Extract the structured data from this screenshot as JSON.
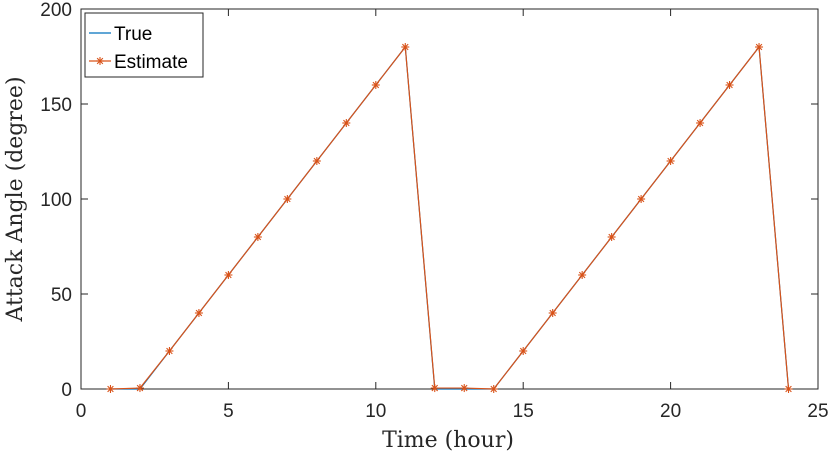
{
  "chart_data": {
    "type": "line",
    "xlabel": "Time (hour)",
    "ylabel": "Attack Angle (degree)",
    "xlim": [
      0,
      25
    ],
    "ylim": [
      0,
      200
    ],
    "xticks": [
      0,
      5,
      10,
      15,
      20,
      25
    ],
    "yticks": [
      0,
      50,
      100,
      150,
      200
    ],
    "grid": false,
    "legend_position": "top-left",
    "x": [
      1,
      2,
      3,
      4,
      5,
      6,
      7,
      8,
      9,
      10,
      11,
      12,
      13,
      14,
      15,
      16,
      17,
      18,
      19,
      20,
      21,
      22,
      23,
      24
    ],
    "series": [
      {
        "name": "True",
        "color": "#0072BD",
        "marker": "none",
        "values": [
          0,
          0,
          20,
          40,
          60,
          80,
          100,
          120,
          140,
          160,
          180,
          0,
          0,
          0,
          20,
          40,
          60,
          80,
          100,
          120,
          140,
          160,
          180,
          0
        ]
      },
      {
        "name": "Estimate",
        "color": "#D95319",
        "marker": "asterisk",
        "values": [
          0,
          0.5,
          20,
          40,
          60,
          80,
          100,
          120,
          140,
          160,
          180,
          0.5,
          0.5,
          0,
          20,
          40,
          60,
          80,
          100,
          120,
          140,
          160,
          180,
          0
        ]
      }
    ]
  }
}
